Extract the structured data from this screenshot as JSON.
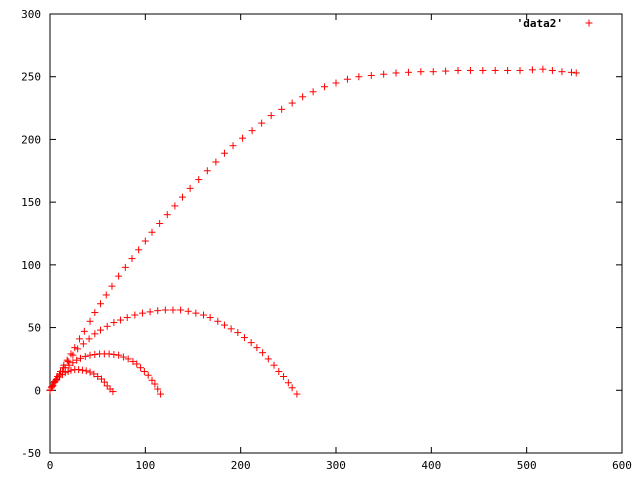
{
  "chart_data": {
    "type": "scatter",
    "title": "",
    "xlabel": "",
    "ylabel": "",
    "xlim": [
      0,
      600
    ],
    "ylim": [
      -50,
      300
    ],
    "x_ticks": [
      "0",
      "100",
      "200",
      "300",
      "400",
      "500",
      "600"
    ],
    "y_ticks": [
      "-50",
      "0",
      "50",
      "100",
      "150",
      "200",
      "250",
      "300"
    ],
    "legend": {
      "position": "top-right",
      "label": "'data2'"
    },
    "marker": "+",
    "color": "#ff0000",
    "grid": false,
    "series": [
      {
        "name": "'data2'",
        "points": [
          [
            0,
            0
          ],
          [
            2.3,
            3.1
          ],
          [
            5.0,
            7.0
          ],
          [
            8.0,
            11.0
          ],
          [
            11.0,
            15.0
          ],
          [
            14.5,
            20.0
          ],
          [
            18.0,
            24.0
          ],
          [
            22.0,
            29.0
          ],
          [
            26.0,
            34.0
          ],
          [
            31.0,
            41.0
          ],
          [
            36.0,
            47.0
          ],
          [
            42.0,
            55.0
          ],
          [
            47.0,
            62.0
          ],
          [
            53.0,
            69.0
          ],
          [
            59.0,
            76.0
          ],
          [
            65.0,
            83.0
          ],
          [
            72.0,
            91.0
          ],
          [
            79.0,
            98.0
          ],
          [
            86.0,
            105.0
          ],
          [
            93.0,
            112.0
          ],
          [
            100.0,
            119.0
          ],
          [
            107.0,
            126.0
          ],
          [
            115.0,
            133.0
          ],
          [
            123.0,
            140.0
          ],
          [
            131.0,
            147.0
          ],
          [
            139.0,
            154.0
          ],
          [
            147.0,
            161.0
          ],
          [
            156.0,
            168.0
          ],
          [
            165.0,
            175.0
          ],
          [
            174.0,
            182.0
          ],
          [
            183.0,
            189.0
          ],
          [
            192.0,
            195.0
          ],
          [
            202.0,
            201.0
          ],
          [
            212.0,
            207.0
          ],
          [
            222.0,
            213.0
          ],
          [
            232.0,
            219.0
          ],
          [
            243.0,
            224.0
          ],
          [
            254.0,
            229.0
          ],
          [
            265.0,
            234.0
          ],
          [
            276.0,
            238.0
          ],
          [
            288.0,
            242.0
          ],
          [
            300.0,
            245.0
          ],
          [
            312.0,
            248.0
          ],
          [
            324.0,
            250.0
          ],
          [
            337.0,
            251.0
          ],
          [
            350.0,
            252.0
          ],
          [
            363.0,
            253.0
          ],
          [
            376.0,
            253.5
          ],
          [
            389.0,
            254.0
          ],
          [
            402.0,
            254.0
          ],
          [
            415.0,
            254.5
          ],
          [
            428.0,
            255.0
          ],
          [
            441.0,
            255.0
          ],
          [
            454.0,
            255.0
          ],
          [
            467.0,
            255.0
          ],
          [
            480.0,
            255.0
          ],
          [
            493.0,
            255.0
          ],
          [
            506.0,
            255.5
          ],
          [
            517.0,
            256.0
          ],
          [
            527.0,
            255.0
          ],
          [
            537.0,
            254.0
          ],
          [
            547.0,
            253.5
          ],
          [
            552.0,
            253.0
          ],
          [
            0,
            0
          ],
          [
            3.0,
            4.0
          ],
          [
            6.0,
            8.0
          ],
          [
            10.0,
            13.0
          ],
          [
            14.0,
            18.0
          ],
          [
            19.0,
            23.0
          ],
          [
            24.0,
            28.0
          ],
          [
            29.0,
            33.0
          ],
          [
            35.0,
            37.0
          ],
          [
            41.0,
            41.0
          ],
          [
            47.0,
            45.0
          ],
          [
            53.0,
            48.0
          ],
          [
            60.0,
            51.0
          ],
          [
            67.0,
            54.0
          ],
          [
            74.0,
            56.0
          ],
          [
            81.0,
            58.0
          ],
          [
            89.0,
            60.0
          ],
          [
            97.0,
            61.5
          ],
          [
            105.0,
            62.5
          ],
          [
            113.0,
            63.5
          ],
          [
            121.0,
            64.0
          ],
          [
            129.0,
            64.0
          ],
          [
            137.0,
            64.0
          ],
          [
            145.0,
            63.0
          ],
          [
            153.0,
            61.5
          ],
          [
            161.0,
            60.0
          ],
          [
            168.0,
            58.0
          ],
          [
            176.0,
            55.0
          ],
          [
            183.0,
            52.0
          ],
          [
            190.0,
            49.0
          ],
          [
            197.0,
            46.0
          ],
          [
            204.0,
            42.0
          ],
          [
            211.0,
            38.0
          ],
          [
            217.0,
            34.0
          ],
          [
            223.0,
            30.0
          ],
          [
            229.0,
            25.0
          ],
          [
            235.0,
            20.0
          ],
          [
            240.0,
            15.0
          ],
          [
            245.0,
            11.0
          ],
          [
            250.0,
            6.0
          ],
          [
            254.0,
            2.0
          ],
          [
            259.0,
            -3.0
          ],
          [
            0,
            0
          ],
          [
            2.0,
            3.0
          ],
          [
            4.0,
            6.0
          ],
          [
            7.0,
            9.0
          ],
          [
            10.0,
            12.0
          ],
          [
            13.0,
            15.0
          ],
          [
            16.0,
            18.0
          ],
          [
            20.0,
            20.0
          ],
          [
            24.0,
            22.0
          ],
          [
            28.0,
            24.0
          ],
          [
            32.0,
            25.5
          ],
          [
            37.0,
            27.0
          ],
          [
            42.0,
            28.0
          ],
          [
            47.0,
            28.5
          ],
          [
            52.0,
            29.0
          ],
          [
            57.0,
            29.0
          ],
          [
            62.0,
            29.0
          ],
          [
            67.0,
            28.5
          ],
          [
            72.0,
            28.0
          ],
          [
            77.0,
            26.5
          ],
          [
            82.0,
            25.0
          ],
          [
            87.0,
            23.0
          ],
          [
            91.0,
            21.0
          ],
          [
            95.0,
            18.0
          ],
          [
            99.0,
            15.0
          ],
          [
            103.0,
            12.0
          ],
          [
            107.0,
            8.0
          ],
          [
            110.0,
            5.0
          ],
          [
            113.0,
            1.0
          ],
          [
            116.0,
            -3.0
          ],
          [
            0,
            0
          ],
          [
            1.5,
            2.0
          ],
          [
            3.0,
            4.0
          ],
          [
            5.0,
            6.5
          ],
          [
            7.0,
            8.5
          ],
          [
            10.0,
            10.5
          ],
          [
            13.0,
            12.5
          ],
          [
            16.0,
            14.0
          ],
          [
            19.0,
            15.0
          ],
          [
            22.0,
            16.0
          ],
          [
            26.0,
            16.5
          ],
          [
            30.0,
            16.5
          ],
          [
            34.0,
            16.0
          ],
          [
            38.0,
            15.5
          ],
          [
            42.0,
            14.5
          ],
          [
            46.0,
            13.0
          ],
          [
            50.0,
            11.0
          ],
          [
            54.0,
            9.0
          ],
          [
            57.0,
            6.5
          ],
          [
            60.0,
            3.5
          ],
          [
            63.0,
            1.0
          ],
          [
            66.0,
            -1.0
          ]
        ]
      }
    ]
  }
}
